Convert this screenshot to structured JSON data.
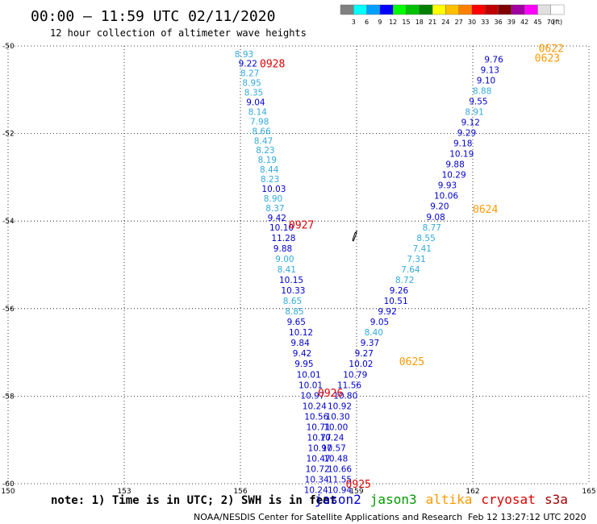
{
  "header": {
    "title": "00:00 – 11:59 UTC 02/11/2020",
    "subtitle": "12 hour collection of altimeter wave heights"
  },
  "colorbar": {
    "labels": [
      "3",
      "6",
      "9",
      "12",
      "15",
      "18",
      "21",
      "24",
      "27",
      "30",
      "33",
      "36",
      "39",
      "42",
      "45",
      "70"
    ],
    "unit": "(ft)",
    "colors": [
      "#808080",
      "#00ffff",
      "#00a0ff",
      "#0000ff",
      "#00ff00",
      "#00c000",
      "#008000",
      "#ffff00",
      "#ffc000",
      "#ff8000",
      "#ff0000",
      "#c00000",
      "#800000",
      "#a000a0",
      "#ff00ff",
      "#e0e0e0",
      "#ffffff"
    ]
  },
  "note": "note: 1) Time is in UTC; 2) SWH is in feet",
  "satellites": [
    {
      "name": "jason2",
      "color": "#0000cc"
    },
    {
      "name": "jason3",
      "color": "#009900"
    },
    {
      "name": "altika",
      "color": "#ff9900"
    },
    {
      "name": "cryosat",
      "color": "#dd0000"
    },
    {
      "name": "s3a",
      "color": "#990000"
    }
  ],
  "footer": {
    "credit": "NOAA/NESDIS Center for Satellite Applications and Research",
    "stamp": "Feb 12 13:27:12 UTC 2020"
  },
  "chart_data": {
    "type": "scatter",
    "title": "00:00 – 11:59 UTC 02/11/2020",
    "subtitle": "12 hour collection of altimeter wave heights",
    "xlim": [
      150,
      165
    ],
    "ylim": [
      -60,
      -50
    ],
    "x_ticks": [
      "150",
      "153",
      "156",
      "159",
      "162",
      "165"
    ],
    "y_ticks": [
      "-50",
      "-52",
      "-54",
      "-56",
      "-58",
      "-60"
    ],
    "grid": true,
    "pass_labels": [
      {
        "text": "0928",
        "lon": 156.5,
        "lat": -50.4,
        "color": "#dd0000"
      },
      {
        "text": "0927",
        "lon": 157.25,
        "lat": -54.08,
        "color": "#dd0000"
      },
      {
        "text": "0926",
        "lon": 158.0,
        "lat": -57.92,
        "color": "#dd0000"
      },
      {
        "text": "0925",
        "lon": 158.72,
        "lat": -60.0,
        "color": "#dd0000"
      },
      {
        "text": "0622",
        "lon": 163.7,
        "lat": -50.05,
        "color": "#ff9900"
      },
      {
        "text": "0623",
        "lon": 163.6,
        "lat": -50.27,
        "color": "#ff9900"
      },
      {
        "text": "0624",
        "lon": 162.0,
        "lat": -53.72,
        "color": "#ff9900"
      },
      {
        "text": "0625",
        "lon": 160.1,
        "lat": -57.2,
        "color": "#ff9900"
      }
    ],
    "points": [
      {
        "lon": 155.85,
        "lat": -50.18,
        "v": "8.93",
        "c": "#33aadd"
      },
      {
        "lon": 155.95,
        "lat": -50.4,
        "v": "9.22",
        "c": "#0000cc"
      },
      {
        "lon": 156.0,
        "lat": -50.62,
        "v": "8.27",
        "c": "#33aadd"
      },
      {
        "lon": 156.05,
        "lat": -50.84,
        "v": "8.95",
        "c": "#33aadd"
      },
      {
        "lon": 156.1,
        "lat": -51.06,
        "v": "8.35",
        "c": "#33aadd"
      },
      {
        "lon": 156.15,
        "lat": -51.28,
        "v": "9.04",
        "c": "#0000cc"
      },
      {
        "lon": 156.2,
        "lat": -51.5,
        "v": "8.14",
        "c": "#33aadd"
      },
      {
        "lon": 156.25,
        "lat": -51.72,
        "v": "7.98",
        "c": "#33aadd"
      },
      {
        "lon": 156.3,
        "lat": -51.94,
        "v": "8.66",
        "c": "#33aadd"
      },
      {
        "lon": 156.35,
        "lat": -52.16,
        "v": "8.47",
        "c": "#33aadd"
      },
      {
        "lon": 156.4,
        "lat": -52.38,
        "v": "8.23",
        "c": "#33aadd"
      },
      {
        "lon": 156.45,
        "lat": -52.6,
        "v": "8.19",
        "c": "#33aadd"
      },
      {
        "lon": 156.5,
        "lat": -52.82,
        "v": "8.44",
        "c": "#33aadd"
      },
      {
        "lon": 156.52,
        "lat": -53.04,
        "v": "8.23",
        "c": "#33aadd"
      },
      {
        "lon": 156.55,
        "lat": -53.26,
        "v": "10.03",
        "c": "#0000cc"
      },
      {
        "lon": 156.6,
        "lat": -53.48,
        "v": "8.90",
        "c": "#33aadd"
      },
      {
        "lon": 156.65,
        "lat": -53.7,
        "v": "8.37",
        "c": "#33aadd"
      },
      {
        "lon": 156.7,
        "lat": -53.92,
        "v": "9.42",
        "c": "#0000cc"
      },
      {
        "lon": 156.75,
        "lat": -54.14,
        "v": "10.10",
        "c": "#0000cc"
      },
      {
        "lon": 156.8,
        "lat": -54.38,
        "v": "11.28",
        "c": "#0000cc"
      },
      {
        "lon": 156.85,
        "lat": -54.62,
        "v": "9.88",
        "c": "#0000cc"
      },
      {
        "lon": 156.9,
        "lat": -54.86,
        "v": "9.00",
        "c": "#33aadd"
      },
      {
        "lon": 156.95,
        "lat": -55.1,
        "v": "8.41",
        "c": "#33aadd"
      },
      {
        "lon": 157.0,
        "lat": -55.34,
        "v": "10.15",
        "c": "#0000cc"
      },
      {
        "lon": 157.05,
        "lat": -55.58,
        "v": "10.33",
        "c": "#0000cc"
      },
      {
        "lon": 157.1,
        "lat": -55.82,
        "v": "8.65",
        "c": "#33aadd"
      },
      {
        "lon": 157.15,
        "lat": -56.06,
        "v": "8.85",
        "c": "#33aadd"
      },
      {
        "lon": 157.2,
        "lat": -56.3,
        "v": "9.65",
        "c": "#0000cc"
      },
      {
        "lon": 157.25,
        "lat": -56.54,
        "v": "10.12",
        "c": "#0000cc"
      },
      {
        "lon": 157.3,
        "lat": -56.78,
        "v": "9.84",
        "c": "#0000cc"
      },
      {
        "lon": 157.35,
        "lat": -57.02,
        "v": "9.42",
        "c": "#0000cc"
      },
      {
        "lon": 157.4,
        "lat": -57.26,
        "v": "9.95",
        "c": "#0000cc"
      },
      {
        "lon": 157.45,
        "lat": -57.5,
        "v": "10.01",
        "c": "#0000cc"
      },
      {
        "lon": 157.5,
        "lat": -57.74,
        "v": "10.01",
        "c": "#0000cc"
      },
      {
        "lon": 157.55,
        "lat": -57.98,
        "v": "10.97",
        "c": "#0000cc"
      },
      {
        "lon": 157.6,
        "lat": -58.22,
        "v": "10.24",
        "c": "#0000cc"
      },
      {
        "lon": 157.65,
        "lat": -58.46,
        "v": "10.56",
        "c": "#0000cc"
      },
      {
        "lon": 157.7,
        "lat": -58.7,
        "v": "10.71",
        "c": "#0000cc"
      },
      {
        "lon": 157.72,
        "lat": -58.94,
        "v": "10.77",
        "c": "#0000cc"
      },
      {
        "lon": 157.74,
        "lat": -59.18,
        "v": "10.97",
        "c": "#0000cc"
      },
      {
        "lon": 157.7,
        "lat": -59.42,
        "v": "10.47",
        "c": "#0000cc"
      },
      {
        "lon": 157.68,
        "lat": -59.66,
        "v": "10.72",
        "c": "#0000cc"
      },
      {
        "lon": 157.66,
        "lat": -59.9,
        "v": "10.34",
        "c": "#0000cc"
      },
      {
        "lon": 157.64,
        "lat": -60.14,
        "v": "10.24",
        "c": "#0000cc"
      },
      {
        "lon": 158.25,
        "lat": -60.14,
        "v": "10.94",
        "c": "#0000cc"
      },
      {
        "lon": 158.25,
        "lat": -59.9,
        "v": "11.55",
        "c": "#0000cc"
      },
      {
        "lon": 158.25,
        "lat": -59.66,
        "v": "10.66",
        "c": "#0000cc"
      },
      {
        "lon": 158.15,
        "lat": -59.42,
        "v": "10.48",
        "c": "#0000cc"
      },
      {
        "lon": 158.1,
        "lat": -59.18,
        "v": "10.57",
        "c": "#0000cc"
      },
      {
        "lon": 158.05,
        "lat": -58.94,
        "v": "10.24",
        "c": "#0000cc"
      },
      {
        "lon": 158.15,
        "lat": -58.7,
        "v": "10.00",
        "c": "#0000cc"
      },
      {
        "lon": 158.2,
        "lat": -58.46,
        "v": "10.30",
        "c": "#0000cc"
      },
      {
        "lon": 158.25,
        "lat": -58.22,
        "v": "10.92",
        "c": "#0000cc"
      },
      {
        "lon": 158.4,
        "lat": -57.98,
        "v": "10.80",
        "c": "#0000cc"
      },
      {
        "lon": 158.5,
        "lat": -57.74,
        "v": "11.56",
        "c": "#0000cc"
      },
      {
        "lon": 158.65,
        "lat": -57.5,
        "v": "10.79",
        "c": "#0000cc"
      },
      {
        "lon": 158.8,
        "lat": -57.26,
        "v": "10.02",
        "c": "#0000cc"
      },
      {
        "lon": 158.95,
        "lat": -57.02,
        "v": "9.27",
        "c": "#0000cc"
      },
      {
        "lon": 159.1,
        "lat": -56.78,
        "v": "9.37",
        "c": "#0000cc"
      },
      {
        "lon": 159.2,
        "lat": -56.54,
        "v": "8.40",
        "c": "#33aadd"
      },
      {
        "lon": 159.35,
        "lat": -56.3,
        "v": "9.05",
        "c": "#0000cc"
      },
      {
        "lon": 159.55,
        "lat": -56.06,
        "v": "9.92",
        "c": "#0000cc"
      },
      {
        "lon": 159.7,
        "lat": -55.82,
        "v": "10.51",
        "c": "#0000cc"
      },
      {
        "lon": 159.85,
        "lat": -55.58,
        "v": "9.26",
        "c": "#0000cc"
      },
      {
        "lon": 160.0,
        "lat": -55.34,
        "v": "8.72",
        "c": "#33aadd"
      },
      {
        "lon": 160.15,
        "lat": -55.1,
        "v": "7.64",
        "c": "#33aadd"
      },
      {
        "lon": 160.3,
        "lat": -54.86,
        "v": "7.31",
        "c": "#33aadd"
      },
      {
        "lon": 160.45,
        "lat": -54.62,
        "v": "7.41",
        "c": "#33aadd"
      },
      {
        "lon": 160.55,
        "lat": -54.38,
        "v": "8.55",
        "c": "#33aadd"
      },
      {
        "lon": 160.7,
        "lat": -54.14,
        "v": "8.77",
        "c": "#33aadd"
      },
      {
        "lon": 160.8,
        "lat": -53.9,
        "v": "9.08",
        "c": "#0000cc"
      },
      {
        "lon": 160.9,
        "lat": -53.66,
        "v": "9.20",
        "c": "#0000cc"
      },
      {
        "lon": 161.0,
        "lat": -53.42,
        "v": "10.06",
        "c": "#0000cc"
      },
      {
        "lon": 161.1,
        "lat": -53.18,
        "v": "9.93",
        "c": "#0000cc"
      },
      {
        "lon": 161.2,
        "lat": -52.94,
        "v": "10.29",
        "c": "#0000cc"
      },
      {
        "lon": 161.3,
        "lat": -52.7,
        "v": "9.88",
        "c": "#0000cc"
      },
      {
        "lon": 161.4,
        "lat": -52.46,
        "v": "10.19",
        "c": "#0000cc"
      },
      {
        "lon": 161.5,
        "lat": -52.22,
        "v": "9.18",
        "c": "#0000cc"
      },
      {
        "lon": 161.6,
        "lat": -51.98,
        "v": "9.29",
        "c": "#0000cc"
      },
      {
        "lon": 161.7,
        "lat": -51.74,
        "v": "9.12",
        "c": "#0000cc"
      },
      {
        "lon": 161.8,
        "lat": -51.5,
        "v": "8.91",
        "c": "#33aadd"
      },
      {
        "lon": 161.9,
        "lat": -51.26,
        "v": "9.55",
        "c": "#0000cc"
      },
      {
        "lon": 162.0,
        "lat": -51.02,
        "v": "8.88",
        "c": "#33aadd"
      },
      {
        "lon": 162.1,
        "lat": -50.78,
        "v": "9.10",
        "c": "#0000cc"
      },
      {
        "lon": 162.2,
        "lat": -50.54,
        "v": "9.13",
        "c": "#0000cc"
      },
      {
        "lon": 162.3,
        "lat": -50.3,
        "v": "9.76",
        "c": "#0000cc"
      }
    ]
  }
}
